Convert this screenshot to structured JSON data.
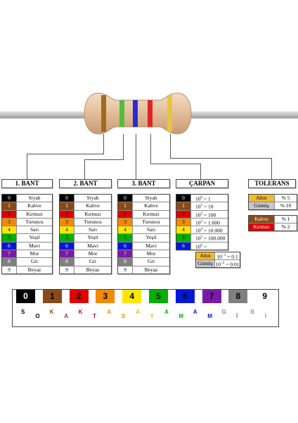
{
  "colors": [
    "#000000",
    "#8a4a16",
    "#e00000",
    "#f28a00",
    "#ffe600",
    "#00b000",
    "#0018d8",
    "#7a1aa8",
    "#808080",
    "#ffffff"
  ],
  "color_table": {
    "numbers": [
      "0",
      "1",
      "2",
      "3",
      "4",
      "5",
      "6",
      "7",
      "8",
      "9"
    ],
    "names": [
      "Siyah",
      "Kahve",
      "Kırmızı",
      "Turuncu",
      "Sarı",
      "Yeşil",
      "Mavi",
      "Mor",
      "Gri",
      "Beyaz"
    ]
  },
  "bands": {
    "band1_title": "1. BANT",
    "band2_title": "2. BANT",
    "band3_title": "3. BANT",
    "multiplier_title": "ÇARPAN",
    "tolerance_title": "TOLERANS"
  },
  "multiplier": {
    "base": [
      "10",
      "10",
      "10",
      "10",
      "10",
      "10",
      "10"
    ],
    "exponents": [
      "0",
      "1",
      "2",
      "3",
      "4",
      "5",
      "6"
    ],
    "values": [
      "1",
      "10",
      "100",
      "1.000",
      "10.000",
      "100.000",
      "1.000.000"
    ],
    "extra": [
      {
        "label": "Altın",
        "base": "10",
        "exponent": "−1",
        "value": "0.1",
        "color": "#f2b830"
      },
      {
        "label": "Gümüş",
        "base": "10",
        "exponent": "−2",
        "value": "0.01",
        "color": "#c8c8c8"
      }
    ]
  },
  "tolerance": {
    "group1": [
      {
        "label": "Altın",
        "value": "% 5",
        "color": "#f2b830"
      },
      {
        "label": "Gümüş",
        "value": "% 10",
        "color": "#c8c8c8"
      }
    ],
    "group2": [
      {
        "label": "Kahve",
        "value": "% 1",
        "color": "#8a4a16"
      },
      {
        "label": "Kırmızı",
        "value": "% 2",
        "color": "#e00000"
      }
    ]
  },
  "strip": {
    "digits": [
      "0",
      "1",
      "2",
      "3",
      "4",
      "5",
      "6",
      "7",
      "8",
      "9"
    ],
    "mnemonic": [
      "S",
      "O",
      "K",
      "A",
      "K",
      "T",
      "A",
      "S",
      "A",
      "Y",
      "A",
      "M",
      "A",
      "M",
      "G",
      "İ",
      "B",
      "İ"
    ]
  }
}
